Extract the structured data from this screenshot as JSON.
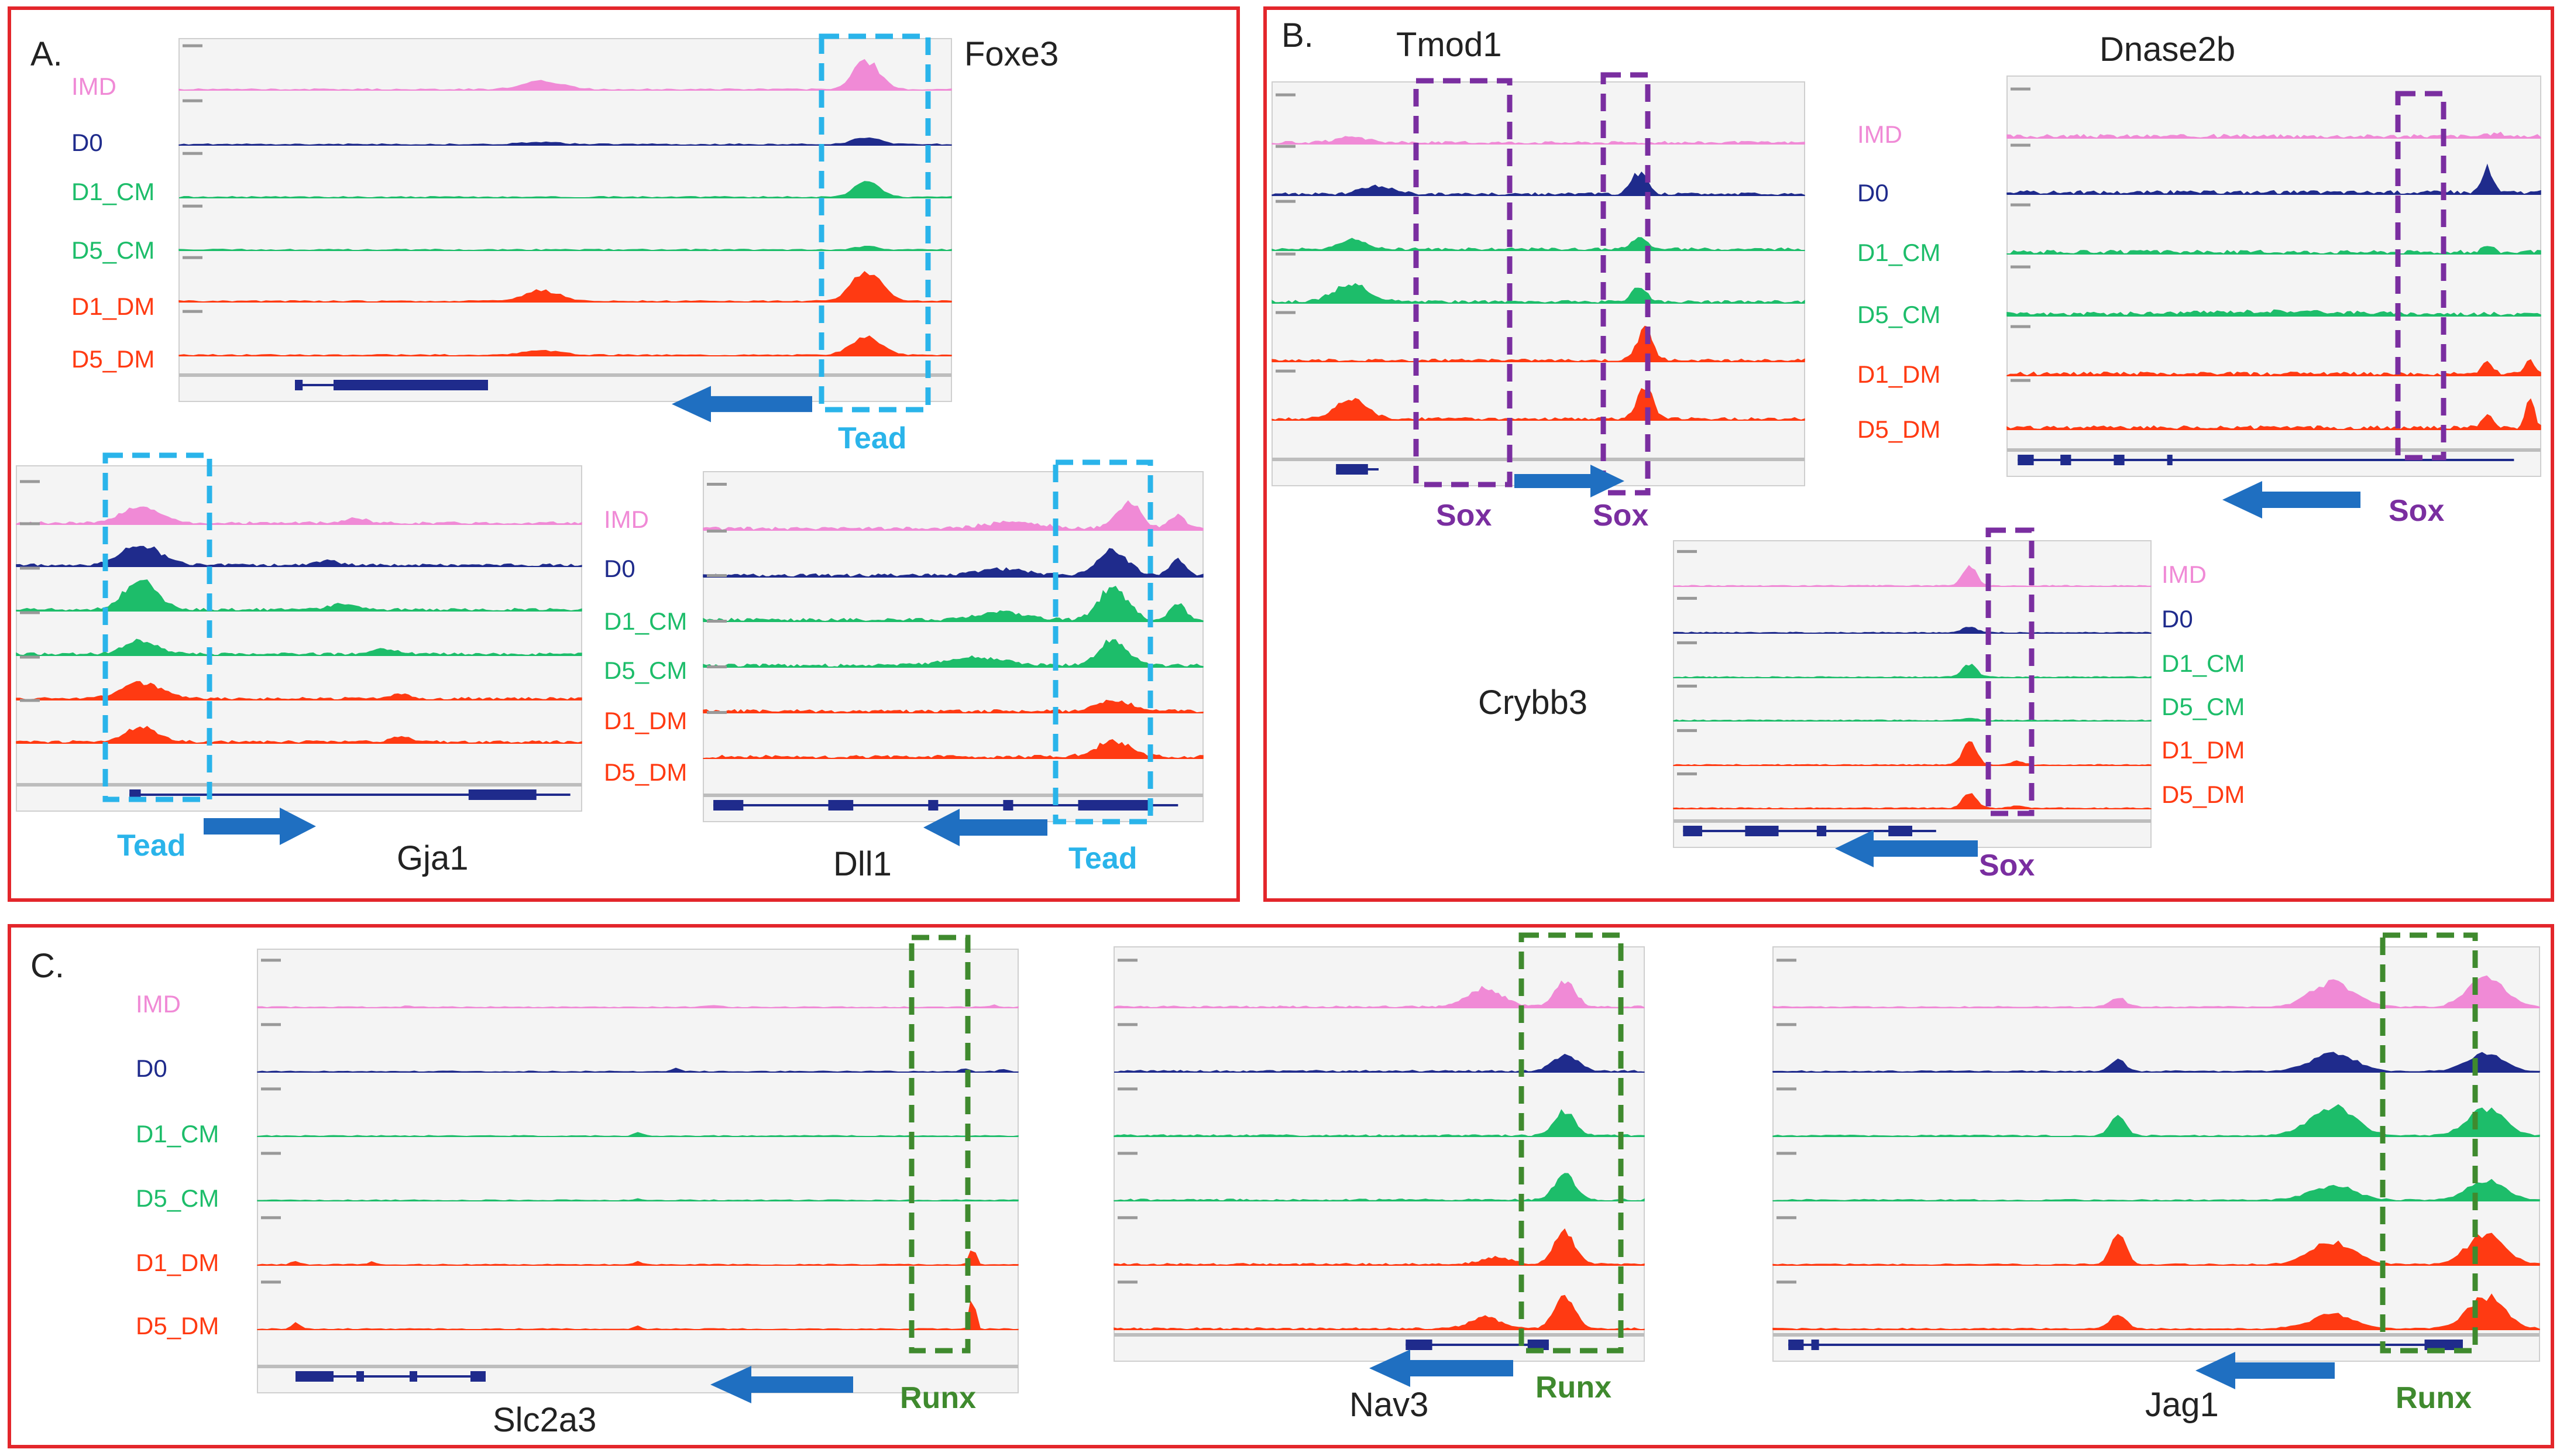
{
  "track_names": [
    "IMD",
    "D0",
    "D1_CM",
    "D5_CM",
    "D1_DM",
    "D5_DM"
  ],
  "colors": {
    "IMD": "#f08ad6",
    "D0": "#1f2b8c",
    "D1_CM": "#1dbd6a",
    "D5_CM": "#1dbd6a",
    "D1_DM": "#ff3a12",
    "D5_DM": "#ff3a12",
    "panel_border": "#e3262b",
    "arrow": "#1f6fc1",
    "tead_box": "#2ab4ea",
    "sox_box": "#7a2ea0",
    "runx_box": "#3f8a2e",
    "gene_model": "#1f2b8c"
  },
  "panels": {
    "A": {
      "label": "A.",
      "motif": "Tead",
      "genes": {
        "Foxe3": {
          "name": "Foxe3",
          "motif": "Tead"
        },
        "Gja1": {
          "name": "Gja1",
          "motif": "Tead"
        },
        "Dll1": {
          "name": "Dll1",
          "motif": "Tead"
        }
      }
    },
    "B": {
      "label": "B.",
      "motif": "Sox",
      "genes": {
        "Tmod1": {
          "name": "Tmod1",
          "motif": "Sox",
          "motif2": "Sox"
        },
        "Dnase2b": {
          "name": "Dnase2b",
          "motif": "Sox"
        },
        "Crybb3": {
          "name": "Crybb3",
          "motif": "Sox"
        }
      }
    },
    "C": {
      "label": "C.",
      "motif": "Runx",
      "genes": {
        "Slc2a3": {
          "name": "Slc2a3",
          "motif": "Runx"
        },
        "Nav3": {
          "name": "Nav3",
          "motif": "Runx"
        },
        "Jag1": {
          "name": "Jag1",
          "motif": "Runx"
        }
      }
    }
  }
}
